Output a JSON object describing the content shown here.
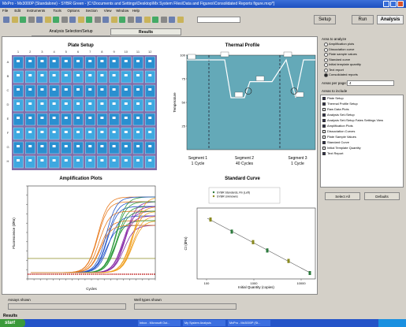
{
  "window": {
    "title": "MxPro - Mx3000P (Standalone) - SYBR Green - [C:\\Documents and Settings\\Desktop\\Mx System Files\\Data and Figures\\Consolidated Reports figure.mxp*]"
  },
  "menu": [
    "File",
    "Edit",
    "Instruments",
    "Tools",
    "Options",
    "Section",
    "View",
    "Window",
    "Help"
  ],
  "toolbar": {
    "buttons": [
      "Setup",
      "Run",
      "Analysis"
    ]
  },
  "tabs": [
    "Analysis Selection/Setup",
    "Results"
  ],
  "plate_setup": {
    "title": "Plate Setup",
    "columns": [
      "1",
      "2",
      "3",
      "4",
      "5",
      "6",
      "7",
      "8",
      "9",
      "10",
      "11",
      "12"
    ],
    "rows": [
      "A",
      "B",
      "C",
      "D",
      "E",
      "F",
      "G",
      "H"
    ]
  },
  "thermal_profile": {
    "title": "Thermal Profile",
    "y_label": "Temperature",
    "yticks": [
      100,
      75,
      50,
      25
    ],
    "segments": [
      {
        "name": "Segment 1",
        "cycles": "1 Cycle"
      },
      {
        "name": "Segment 2",
        "cycles": "40 Cycles"
      },
      {
        "name": "Segment 3",
        "cycles": "1 Cycle"
      }
    ]
  },
  "amplification_plots": {
    "title": "Amplification Plots",
    "y_label": "Fluorescence (dRn)",
    "x_label": "Cycles"
  },
  "standard_curve": {
    "title": "Standard Curve",
    "y_label": "Ct (dRn)",
    "x_label": "Initial Quantity (copies)",
    "xticks": [
      100,
      1000,
      10000
    ],
    "legend": [
      "SYBR Standards, Rn (Left)",
      "SYBR Unknowns"
    ]
  },
  "sidebar": {
    "analyze_title": "Area to analyze",
    "analyze_options": [
      "Amplification plots",
      "Dissociation curve",
      "Plate sample values",
      "Standard curve",
      "Initial template quantity",
      "Text report",
      "Consolidated reports"
    ],
    "areas_per_page_label": "Areas per page:",
    "areas_per_page": "4",
    "include_title": "Areas to include",
    "include_items": [
      "Plate Setup",
      "Thermal Profile Setup",
      "Raw Data Plots",
      "Analysis Set./Setup",
      "Analysis Set./Setup Fates Settings View",
      "Amplification Plots",
      "Dissociation Curves",
      "Plate Sample Values",
      "Standard Curve",
      "Initial Template Quantity",
      "Text Report"
    ],
    "buttons": [
      "Select All",
      "Defaults"
    ]
  },
  "status": {
    "assays_shown": "Assays shown",
    "well_types_shown": "Well types shown",
    "results": "Results"
  },
  "taskbar": {
    "start": "start",
    "tasks": [
      "Inbox - Microsoft Out...",
      "My System Analysis",
      "MxPro - Mx3000P (St..."
    ]
  }
}
